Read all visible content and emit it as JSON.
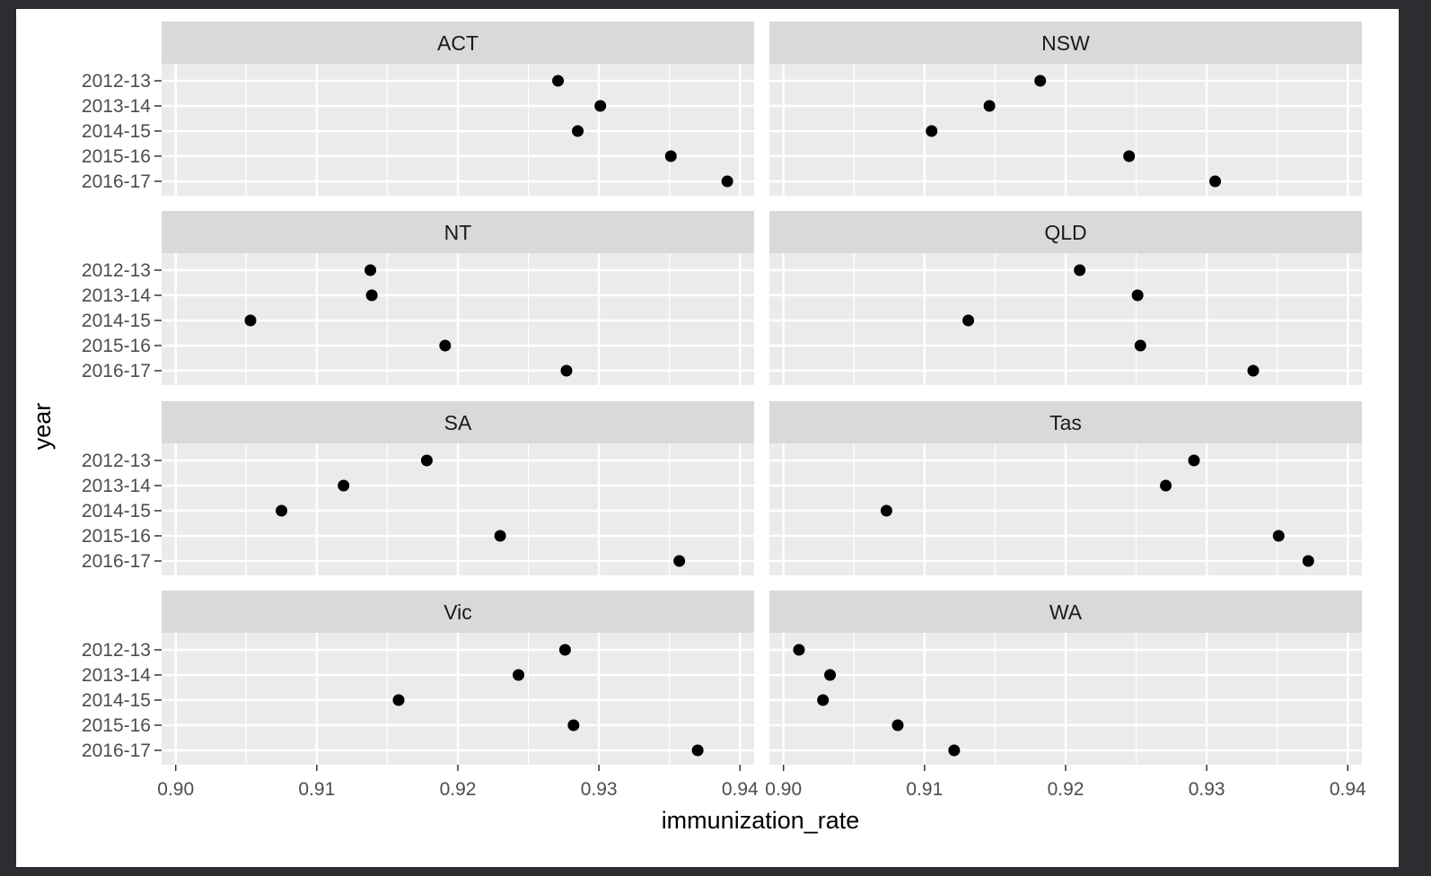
{
  "chart_data": {
    "type": "scatter",
    "facet_layout": "4 rows x 2 columns",
    "xlabel": "immunization_rate",
    "ylabel": "year",
    "xlim": [
      0.899,
      0.941
    ],
    "x_ticks": [
      0.9,
      0.91,
      0.92,
      0.93,
      0.94
    ],
    "x_tick_labels": [
      "0.90",
      "0.91",
      "0.92",
      "0.93",
      "0.94"
    ],
    "y_categories": [
      "2012-13",
      "2013-14",
      "2014-15",
      "2015-16",
      "2016-17"
    ],
    "grid": true,
    "panel_background": "#ebebeb",
    "strip_background": "#d9d9d9",
    "gridline_color": "#ffffff",
    "point_color": "#000000",
    "facets": [
      {
        "name": "ACT",
        "values": [
          0.9271,
          0.9301,
          0.9285,
          0.9351,
          0.9391
        ]
      },
      {
        "name": "NSW",
        "values": [
          0.9182,
          0.9146,
          0.9105,
          0.9245,
          0.9306
        ]
      },
      {
        "name": "NT",
        "values": [
          0.9138,
          0.9139,
          0.9053,
          0.9191,
          0.9277
        ]
      },
      {
        "name": "QLD",
        "values": [
          0.921,
          0.9251,
          0.9131,
          0.9253,
          0.9333
        ]
      },
      {
        "name": "SA",
        "values": [
          0.9178,
          0.9119,
          0.9075,
          0.923,
          0.9357
        ]
      },
      {
        "name": "Tas",
        "values": [
          0.9291,
          0.9271,
          0.9073,
          0.9351,
          0.9372
        ]
      },
      {
        "name": "Vic",
        "values": [
          0.9276,
          0.9243,
          0.9158,
          0.9282,
          0.937
        ]
      },
      {
        "name": "WA",
        "values": [
          0.9011,
          0.9033,
          0.9028,
          0.9081,
          0.9121
        ]
      }
    ]
  }
}
